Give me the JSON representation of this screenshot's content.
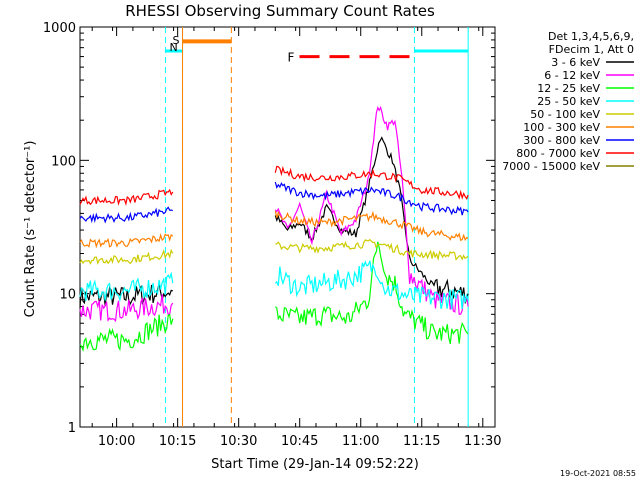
{
  "chart_data": {
    "type": "line",
    "title": "RHESSI Observing Summary Count Rates",
    "ylabel": "Count Rate (s⁻¹ detector⁻¹)",
    "xlabel": "Start Time (29-Jan-14 09:52:22)",
    "footer_date": "19-Oct-2021 08:55",
    "y_scale": "log",
    "ylim": [
      1,
      1000
    ],
    "xlim": [
      9.85,
      11.55
    ],
    "x_ticks": [
      {
        "t": 10.0,
        "label": "10:00"
      },
      {
        "t": 10.25,
        "label": "10:15"
      },
      {
        "t": 10.5,
        "label": "10:30"
      },
      {
        "t": 10.75,
        "label": "10:45"
      },
      {
        "t": 11.0,
        "label": "11:00"
      },
      {
        "t": 11.25,
        "label": "11:15"
      },
      {
        "t": 11.5,
        "label": "11:30"
      }
    ],
    "y_ticks": [
      {
        "v": 1,
        "label": "1"
      },
      {
        "v": 10,
        "label": "10"
      },
      {
        "v": 100,
        "label": "100"
      },
      {
        "v": 1000,
        "label": "1000"
      }
    ],
    "legend_header": [
      "Det 1,3,4,5,6,9,",
      "FDecim 1, Att 0"
    ],
    "legend_placement": "right",
    "series": [
      {
        "name": "3 - 6 keV",
        "color": "#000000",
        "points": [
          [
            9.85,
            9.5
          ],
          [
            10.05,
            9.5
          ],
          [
            10.23,
            10.5
          ],
          [
            10.25,
            null
          ],
          [
            10.65,
            38
          ],
          [
            10.7,
            30
          ],
          [
            10.75,
            34
          ],
          [
            10.8,
            26
          ],
          [
            10.86,
            44
          ],
          [
            10.92,
            30
          ],
          [
            10.98,
            28
          ],
          [
            11.03,
            60
          ],
          [
            11.08,
            150
          ],
          [
            11.13,
            100
          ],
          [
            11.16,
            60
          ],
          [
            11.2,
            18
          ],
          [
            11.3,
            11
          ],
          [
            11.44,
            10
          ]
        ]
      },
      {
        "name": "6 - 12 keV",
        "color": "#ff00ff",
        "points": [
          [
            9.85,
            7.5
          ],
          [
            10.05,
            7.5
          ],
          [
            10.23,
            8.5
          ],
          [
            10.25,
            null
          ],
          [
            10.65,
            45
          ],
          [
            10.7,
            30
          ],
          [
            10.75,
            46
          ],
          [
            10.8,
            24
          ],
          [
            10.86,
            56
          ],
          [
            10.92,
            28
          ],
          [
            10.98,
            36
          ],
          [
            11.03,
            70
          ],
          [
            11.07,
            260
          ],
          [
            11.11,
            180
          ],
          [
            11.14,
            200
          ],
          [
            11.17,
            70
          ],
          [
            11.2,
            14
          ],
          [
            11.3,
            9
          ],
          [
            11.44,
            8
          ]
        ]
      },
      {
        "name": "12 - 25 keV",
        "color": "#00ff00",
        "points": [
          [
            9.85,
            4.5
          ],
          [
            10.05,
            4.5
          ],
          [
            10.23,
            6.5
          ],
          [
            10.25,
            null
          ],
          [
            10.65,
            7
          ],
          [
            10.75,
            6.5
          ],
          [
            10.85,
            7
          ],
          [
            10.95,
            6.5
          ],
          [
            11.03,
            9
          ],
          [
            11.07,
            25
          ],
          [
            11.1,
            14
          ],
          [
            11.14,
            12
          ],
          [
            11.18,
            7
          ],
          [
            11.3,
            5
          ],
          [
            11.44,
            5
          ]
        ]
      },
      {
        "name": "25 - 50 keV",
        "color": "#00ffff",
        "points": [
          [
            9.85,
            10.5
          ],
          [
            10.05,
            10.5
          ],
          [
            10.23,
            12
          ],
          [
            10.25,
            null
          ],
          [
            10.65,
            14
          ],
          [
            10.75,
            11
          ],
          [
            10.85,
            12
          ],
          [
            10.95,
            13
          ],
          [
            11.05,
            16
          ],
          [
            11.1,
            11
          ],
          [
            11.2,
            9.5
          ],
          [
            11.44,
            9
          ]
        ]
      },
      {
        "name": "50 - 100 keV",
        "color": "#cccc00",
        "points": [
          [
            9.85,
            18
          ],
          [
            10.05,
            18
          ],
          [
            10.23,
            20
          ],
          [
            10.25,
            null
          ],
          [
            10.65,
            23
          ],
          [
            10.75,
            22
          ],
          [
            10.85,
            22
          ],
          [
            10.95,
            23
          ],
          [
            11.05,
            24
          ],
          [
            11.1,
            23
          ],
          [
            11.2,
            20
          ],
          [
            11.44,
            19
          ]
        ]
      },
      {
        "name": "100 - 300 keV",
        "color": "#ff8000",
        "points": [
          [
            9.85,
            24
          ],
          [
            10.05,
            24
          ],
          [
            10.23,
            27
          ],
          [
            10.25,
            null
          ],
          [
            10.65,
            40
          ],
          [
            10.75,
            35
          ],
          [
            10.85,
            34
          ],
          [
            10.95,
            36
          ],
          [
            11.05,
            38
          ],
          [
            11.15,
            34
          ],
          [
            11.25,
            29
          ],
          [
            11.44,
            26
          ]
        ]
      },
      {
        "name": "300 - 800 keV",
        "color": "#0000ff",
        "points": [
          [
            9.85,
            37
          ],
          [
            10.05,
            37
          ],
          [
            10.23,
            42
          ],
          [
            10.25,
            null
          ],
          [
            10.65,
            66
          ],
          [
            10.75,
            57
          ],
          [
            10.85,
            54
          ],
          [
            10.95,
            57
          ],
          [
            11.05,
            60
          ],
          [
            11.15,
            54
          ],
          [
            11.25,
            45
          ],
          [
            11.44,
            41
          ]
        ]
      },
      {
        "name": "800 - 7000 keV",
        "color": "#ff0000",
        "points": [
          [
            9.85,
            50
          ],
          [
            10.05,
            50
          ],
          [
            10.23,
            58
          ],
          [
            10.25,
            null
          ],
          [
            10.65,
            85
          ],
          [
            10.75,
            76
          ],
          [
            10.85,
            74
          ],
          [
            10.95,
            76
          ],
          [
            11.05,
            80
          ],
          [
            11.15,
            74
          ],
          [
            11.25,
            60
          ],
          [
            11.44,
            55
          ]
        ]
      },
      {
        "name": "7000 - 15000 keV",
        "color": "#808000",
        "points": []
      }
    ],
    "events": [
      {
        "kind": "saa",
        "start": 10.2,
        "end": 10.27,
        "color": "#00ffff"
      },
      {
        "kind": "saa",
        "start": 11.22,
        "end": 11.44,
        "color": "#00ffff"
      },
      {
        "kind": "night",
        "start": 10.27,
        "end": 10.47,
        "color": "#ff8000"
      },
      {
        "kind": "flare",
        "start": 10.7,
        "end": 11.22,
        "color": "#ff0000"
      }
    ],
    "event_labels": {
      "saa_top": "S",
      "saa_bottom": "N",
      "flare": "F"
    }
  }
}
